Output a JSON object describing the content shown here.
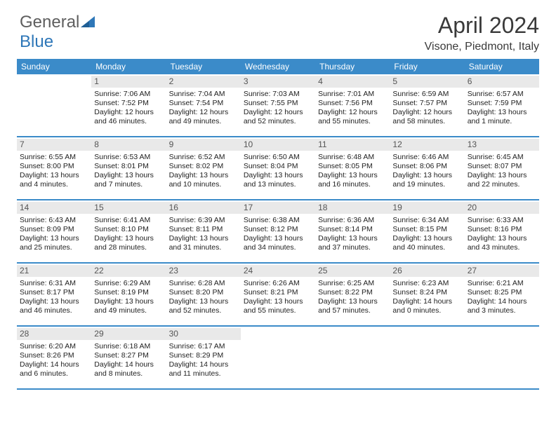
{
  "brand": {
    "part1": "General",
    "part2": "Blue"
  },
  "title": "April 2024",
  "location": "Visone, Piedmont, Italy",
  "colors": {
    "header_bg": "#3b8bc9",
    "header_fg": "#ffffff",
    "daynum_bg": "#e9e9e9",
    "rule": "#3b8bc9",
    "title_color": "#3a3a3a",
    "logo_gray": "#5e5e5e",
    "logo_blue": "#2e77b8"
  },
  "daysOfWeek": [
    "Sunday",
    "Monday",
    "Tuesday",
    "Wednesday",
    "Thursday",
    "Friday",
    "Saturday"
  ],
  "weeks": [
    [
      {
        "n": "",
        "sr": "",
        "ss": "",
        "dl": ""
      },
      {
        "n": "1",
        "sr": "Sunrise: 7:06 AM",
        "ss": "Sunset: 7:52 PM",
        "dl": "Daylight: 12 hours and 46 minutes."
      },
      {
        "n": "2",
        "sr": "Sunrise: 7:04 AM",
        "ss": "Sunset: 7:54 PM",
        "dl": "Daylight: 12 hours and 49 minutes."
      },
      {
        "n": "3",
        "sr": "Sunrise: 7:03 AM",
        "ss": "Sunset: 7:55 PM",
        "dl": "Daylight: 12 hours and 52 minutes."
      },
      {
        "n": "4",
        "sr": "Sunrise: 7:01 AM",
        "ss": "Sunset: 7:56 PM",
        "dl": "Daylight: 12 hours and 55 minutes."
      },
      {
        "n": "5",
        "sr": "Sunrise: 6:59 AM",
        "ss": "Sunset: 7:57 PM",
        "dl": "Daylight: 12 hours and 58 minutes."
      },
      {
        "n": "6",
        "sr": "Sunrise: 6:57 AM",
        "ss": "Sunset: 7:59 PM",
        "dl": "Daylight: 13 hours and 1 minute."
      }
    ],
    [
      {
        "n": "7",
        "sr": "Sunrise: 6:55 AM",
        "ss": "Sunset: 8:00 PM",
        "dl": "Daylight: 13 hours and 4 minutes."
      },
      {
        "n": "8",
        "sr": "Sunrise: 6:53 AM",
        "ss": "Sunset: 8:01 PM",
        "dl": "Daylight: 13 hours and 7 minutes."
      },
      {
        "n": "9",
        "sr": "Sunrise: 6:52 AM",
        "ss": "Sunset: 8:02 PM",
        "dl": "Daylight: 13 hours and 10 minutes."
      },
      {
        "n": "10",
        "sr": "Sunrise: 6:50 AM",
        "ss": "Sunset: 8:04 PM",
        "dl": "Daylight: 13 hours and 13 minutes."
      },
      {
        "n": "11",
        "sr": "Sunrise: 6:48 AM",
        "ss": "Sunset: 8:05 PM",
        "dl": "Daylight: 13 hours and 16 minutes."
      },
      {
        "n": "12",
        "sr": "Sunrise: 6:46 AM",
        "ss": "Sunset: 8:06 PM",
        "dl": "Daylight: 13 hours and 19 minutes."
      },
      {
        "n": "13",
        "sr": "Sunrise: 6:45 AM",
        "ss": "Sunset: 8:07 PM",
        "dl": "Daylight: 13 hours and 22 minutes."
      }
    ],
    [
      {
        "n": "14",
        "sr": "Sunrise: 6:43 AM",
        "ss": "Sunset: 8:09 PM",
        "dl": "Daylight: 13 hours and 25 minutes."
      },
      {
        "n": "15",
        "sr": "Sunrise: 6:41 AM",
        "ss": "Sunset: 8:10 PM",
        "dl": "Daylight: 13 hours and 28 minutes."
      },
      {
        "n": "16",
        "sr": "Sunrise: 6:39 AM",
        "ss": "Sunset: 8:11 PM",
        "dl": "Daylight: 13 hours and 31 minutes."
      },
      {
        "n": "17",
        "sr": "Sunrise: 6:38 AM",
        "ss": "Sunset: 8:12 PM",
        "dl": "Daylight: 13 hours and 34 minutes."
      },
      {
        "n": "18",
        "sr": "Sunrise: 6:36 AM",
        "ss": "Sunset: 8:14 PM",
        "dl": "Daylight: 13 hours and 37 minutes."
      },
      {
        "n": "19",
        "sr": "Sunrise: 6:34 AM",
        "ss": "Sunset: 8:15 PM",
        "dl": "Daylight: 13 hours and 40 minutes."
      },
      {
        "n": "20",
        "sr": "Sunrise: 6:33 AM",
        "ss": "Sunset: 8:16 PM",
        "dl": "Daylight: 13 hours and 43 minutes."
      }
    ],
    [
      {
        "n": "21",
        "sr": "Sunrise: 6:31 AM",
        "ss": "Sunset: 8:17 PM",
        "dl": "Daylight: 13 hours and 46 minutes."
      },
      {
        "n": "22",
        "sr": "Sunrise: 6:29 AM",
        "ss": "Sunset: 8:19 PM",
        "dl": "Daylight: 13 hours and 49 minutes."
      },
      {
        "n": "23",
        "sr": "Sunrise: 6:28 AM",
        "ss": "Sunset: 8:20 PM",
        "dl": "Daylight: 13 hours and 52 minutes."
      },
      {
        "n": "24",
        "sr": "Sunrise: 6:26 AM",
        "ss": "Sunset: 8:21 PM",
        "dl": "Daylight: 13 hours and 55 minutes."
      },
      {
        "n": "25",
        "sr": "Sunrise: 6:25 AM",
        "ss": "Sunset: 8:22 PM",
        "dl": "Daylight: 13 hours and 57 minutes."
      },
      {
        "n": "26",
        "sr": "Sunrise: 6:23 AM",
        "ss": "Sunset: 8:24 PM",
        "dl": "Daylight: 14 hours and 0 minutes."
      },
      {
        "n": "27",
        "sr": "Sunrise: 6:21 AM",
        "ss": "Sunset: 8:25 PM",
        "dl": "Daylight: 14 hours and 3 minutes."
      }
    ],
    [
      {
        "n": "28",
        "sr": "Sunrise: 6:20 AM",
        "ss": "Sunset: 8:26 PM",
        "dl": "Daylight: 14 hours and 6 minutes."
      },
      {
        "n": "29",
        "sr": "Sunrise: 6:18 AM",
        "ss": "Sunset: 8:27 PM",
        "dl": "Daylight: 14 hours and 8 minutes."
      },
      {
        "n": "30",
        "sr": "Sunrise: 6:17 AM",
        "ss": "Sunset: 8:29 PM",
        "dl": "Daylight: 14 hours and 11 minutes."
      },
      {
        "n": "",
        "sr": "",
        "ss": "",
        "dl": ""
      },
      {
        "n": "",
        "sr": "",
        "ss": "",
        "dl": ""
      },
      {
        "n": "",
        "sr": "",
        "ss": "",
        "dl": ""
      },
      {
        "n": "",
        "sr": "",
        "ss": "",
        "dl": ""
      }
    ]
  ]
}
